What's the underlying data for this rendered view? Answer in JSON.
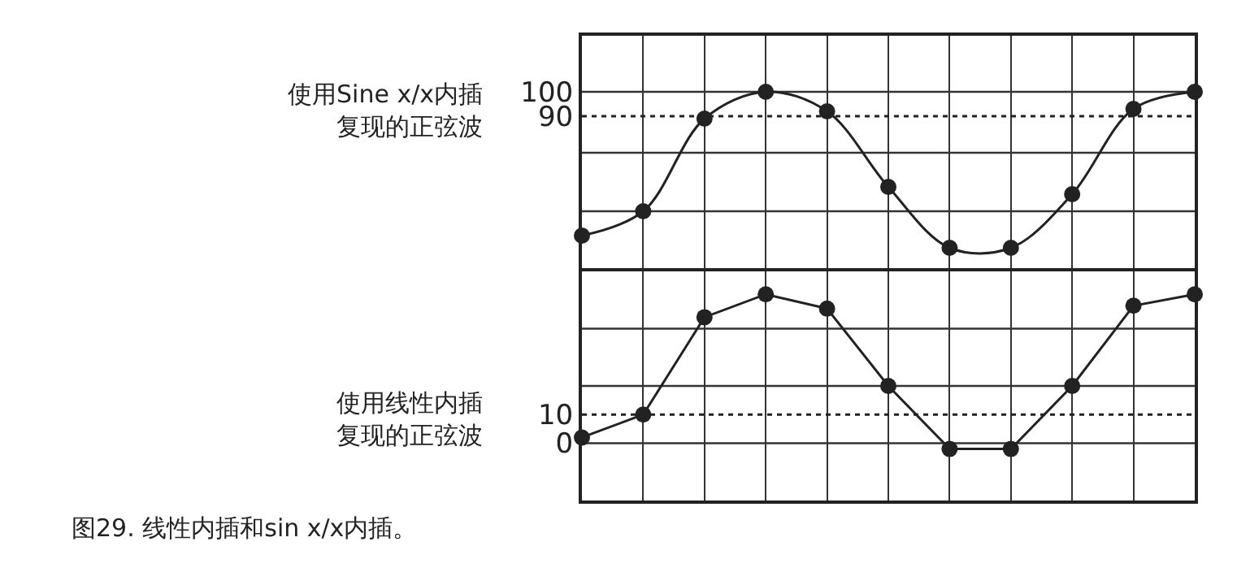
{
  "chart_data": [
    {
      "type": "line",
      "ylabel": "使用Sine x/x内插复现的正弦波",
      "categories": [
        null,
        null,
        null,
        null,
        null,
        null,
        null,
        null,
        null,
        null,
        null
      ],
      "series": [
        {
          "color": "#222222",
          "values": [
            41,
            51,
            89,
            100,
            92,
            61,
            36,
            36,
            58,
            93,
            100
          ]
        }
      ],
      "ylim": [
        27,
        123
      ],
      "yticks": [
        {
          "value": 51,
          "label": null
        },
        {
          "value": 75,
          "label": null
        },
        90,
        100
      ],
      "ref_lines": [
        {
          "axis": "y",
          "value": 90,
          "line_style": "dotted"
        }
      ],
      "grid": true,
      "marker": "circle",
      "line_style": "solid"
    },
    {
      "type": "line",
      "ylabel": "使用线性内插复现的正弦波",
      "categories": [
        null,
        null,
        null,
        null,
        null,
        null,
        null,
        null,
        null,
        null,
        null
      ],
      "series": [
        {
          "color": "#222222",
          "values": [
            2,
            10,
            44,
            52,
            47,
            20,
            -2,
            -2,
            20,
            48,
            52
          ]
        }
      ],
      "ylim": [
        -20,
        60
      ],
      "yticks": [
        0,
        10,
        {
          "value": 20,
          "label": null
        },
        {
          "value": 40,
          "label": null
        }
      ],
      "ref_lines": [
        {
          "axis": "y",
          "value": 10,
          "line_style": "dotted"
        }
      ],
      "annotations": [
        "图29. 线性内插和sin x/x内插。"
      ],
      "grid": true,
      "marker": "circle",
      "line_style": "solid"
    }
  ]
}
